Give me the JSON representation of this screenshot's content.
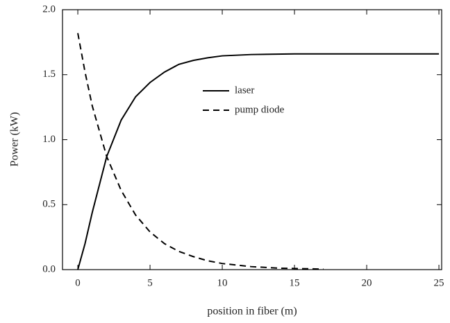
{
  "chart_data": {
    "type": "line",
    "x_label": "position in fiber (m)",
    "y_label": "Power (kW)",
    "xlim": [
      -1.06,
      25.19
    ],
    "ylim": [
      0,
      2
    ],
    "xticks": [
      0,
      5,
      10,
      15,
      20,
      25
    ],
    "yticks": [
      {
        "value": 0,
        "label": "0.0"
      },
      {
        "value": 0.5,
        "label": "0.5"
      },
      {
        "value": 1,
        "label": "1.0"
      },
      {
        "value": 1.5,
        "label": "1.5"
      },
      {
        "value": 2,
        "label": "2.0"
      }
    ],
    "series": [
      {
        "name": "laser",
        "color": "#000000",
        "linestyle": "solid",
        "x": [
          0,
          0.5,
          1,
          2,
          3,
          4,
          5,
          6,
          7,
          8,
          9,
          10,
          12,
          15,
          20,
          25
        ],
        "values": [
          0,
          0.2,
          0.44,
          0.87,
          1.15,
          1.33,
          1.44,
          1.52,
          1.58,
          1.61,
          1.63,
          1.645,
          1.655,
          1.66,
          1.66,
          1.66
        ]
      },
      {
        "name": "pump diode",
        "color": "#000000",
        "linestyle": "dashed",
        "x": [
          0,
          0.5,
          1,
          2,
          3,
          4,
          5,
          6,
          7,
          8,
          9,
          10,
          12,
          14,
          17
        ],
        "values": [
          1.82,
          1.52,
          1.26,
          0.87,
          0.61,
          0.42,
          0.29,
          0.2,
          0.14,
          0.1,
          0.068,
          0.047,
          0.023,
          0.011,
          0.004
        ]
      }
    ]
  }
}
